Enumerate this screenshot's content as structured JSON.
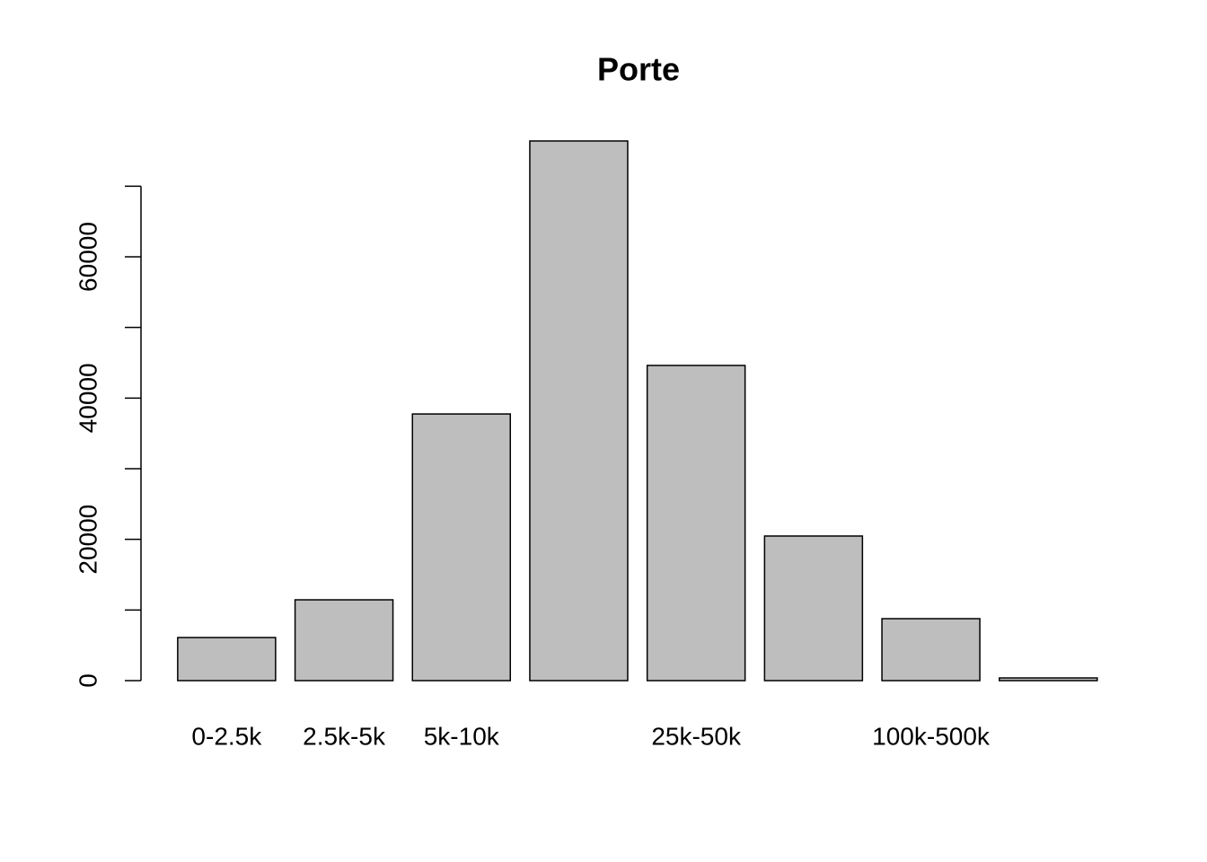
{
  "chart_data": {
    "type": "bar",
    "title": "Porte",
    "categories": [
      "0-2.5k",
      "2.5k-5k",
      "5k-10k",
      null,
      "25k-50k",
      null,
      "100k-500k",
      null
    ],
    "values": [
      6100,
      11440,
      37750,
      76400,
      44620,
      20470,
      8770,
      380
    ],
    "color": "#bebebe",
    "ylim": [
      0,
      76400
    ],
    "yticks": [
      0,
      20000,
      40000,
      60000
    ],
    "minor_yticks": [
      10000,
      30000,
      50000,
      70000
    ]
  }
}
